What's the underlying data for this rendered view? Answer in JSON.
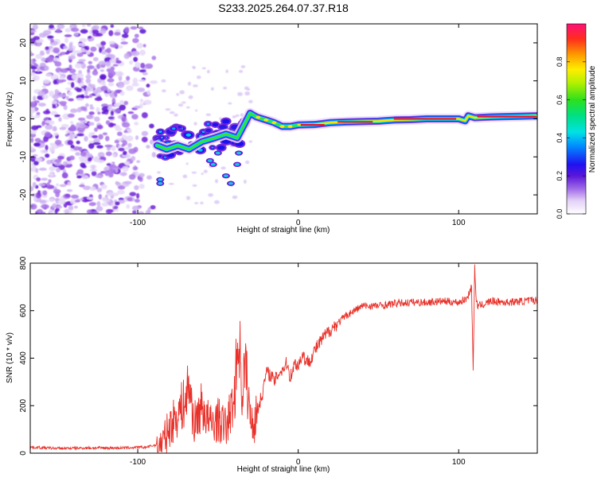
{
  "title": "S233.2025.264.07.37.R18",
  "colors": {
    "snr_line": "#e8312a",
    "axis": "#000000",
    "speckle": "#7a2bdc",
    "ridge_core": "#e8123a",
    "background": "#ffffff"
  },
  "chart_data": [
    {
      "type": "heatmap",
      "name": "spectrogram",
      "title": "S233.2025.264.07.37.R18",
      "xlabel": "Height of straight line (km)",
      "ylabel": "Frequency (Hz)",
      "xlim": [
        -167,
        149
      ],
      "ylim": [
        -25,
        25
      ],
      "xticks": [
        -100,
        0,
        100
      ],
      "yticks": [
        -20,
        -10,
        0,
        10,
        20
      ],
      "ridge": {
        "x": [
          -88,
          -82,
          -75,
          -68,
          -60,
          -52,
          -45,
          -38,
          -33,
          -30,
          -26,
          -20,
          -15,
          -10,
          -5,
          0,
          10,
          20,
          30,
          40,
          50,
          60,
          70,
          80,
          90,
          100,
          104,
          106,
          110,
          120,
          130,
          140,
          149
        ],
        "y": [
          -7,
          -8,
          -7,
          -8,
          -6,
          -5,
          -4,
          -5,
          -1,
          1.5,
          0.5,
          -0.3,
          -1,
          -2,
          -2,
          -1.6,
          -1.5,
          -1,
          -0.8,
          -0.7,
          -0.6,
          -0.3,
          -0.2,
          0,
          0,
          0,
          -0.5,
          0.8,
          0.3,
          0.5,
          0.6,
          0.7,
          0.8
        ]
      },
      "colorbar": {
        "label": "Normalized spectral amplitude",
        "ticks": [
          0.0,
          0.2,
          0.4,
          0.6,
          0.8
        ],
        "tick_labels": [
          "0.0",
          "0.2",
          "0.4",
          "0.6",
          "0.8"
        ],
        "range": [
          0,
          1
        ]
      }
    },
    {
      "type": "line",
      "name": "snr",
      "xlabel": "Height of straight line (km)",
      "ylabel": "SNR (10 * v/v)",
      "xlim": [
        -167,
        149
      ],
      "ylim": [
        0,
        800
      ],
      "xticks": [
        -100,
        0,
        100
      ],
      "yticks": [
        0,
        200,
        400,
        600,
        800
      ],
      "series": [
        {
          "name": "SNR",
          "x": [
            -167,
            -150,
            -130,
            -110,
            -95,
            -85,
            -80,
            -75,
            -70,
            -68,
            -65,
            -60,
            -55,
            -50,
            -45,
            -40,
            -37,
            -35,
            -33,
            -30,
            -27,
            -25,
            -22,
            -20,
            -17,
            -15,
            -12,
            -10,
            -7,
            -5,
            -2,
            0,
            3,
            5,
            8,
            10,
            15,
            20,
            25,
            30,
            40,
            50,
            60,
            70,
            80,
            90,
            100,
            105,
            108,
            109,
            110,
            111,
            112,
            115,
            120,
            130,
            140,
            149
          ],
          "values": [
            25,
            20,
            22,
            22,
            25,
            40,
            110,
            170,
            220,
            300,
            120,
            200,
            120,
            140,
            110,
            220,
            510,
            250,
            380,
            150,
            130,
            190,
            260,
            340,
            330,
            300,
            340,
            350,
            380,
            320,
            380,
            370,
            420,
            380,
            400,
            430,
            480,
            520,
            550,
            580,
            620,
            620,
            630,
            635,
            635,
            640,
            635,
            650,
            700,
            350,
            780,
            640,
            620,
            625,
            640,
            635,
            640,
            645
          ]
        }
      ]
    }
  ]
}
